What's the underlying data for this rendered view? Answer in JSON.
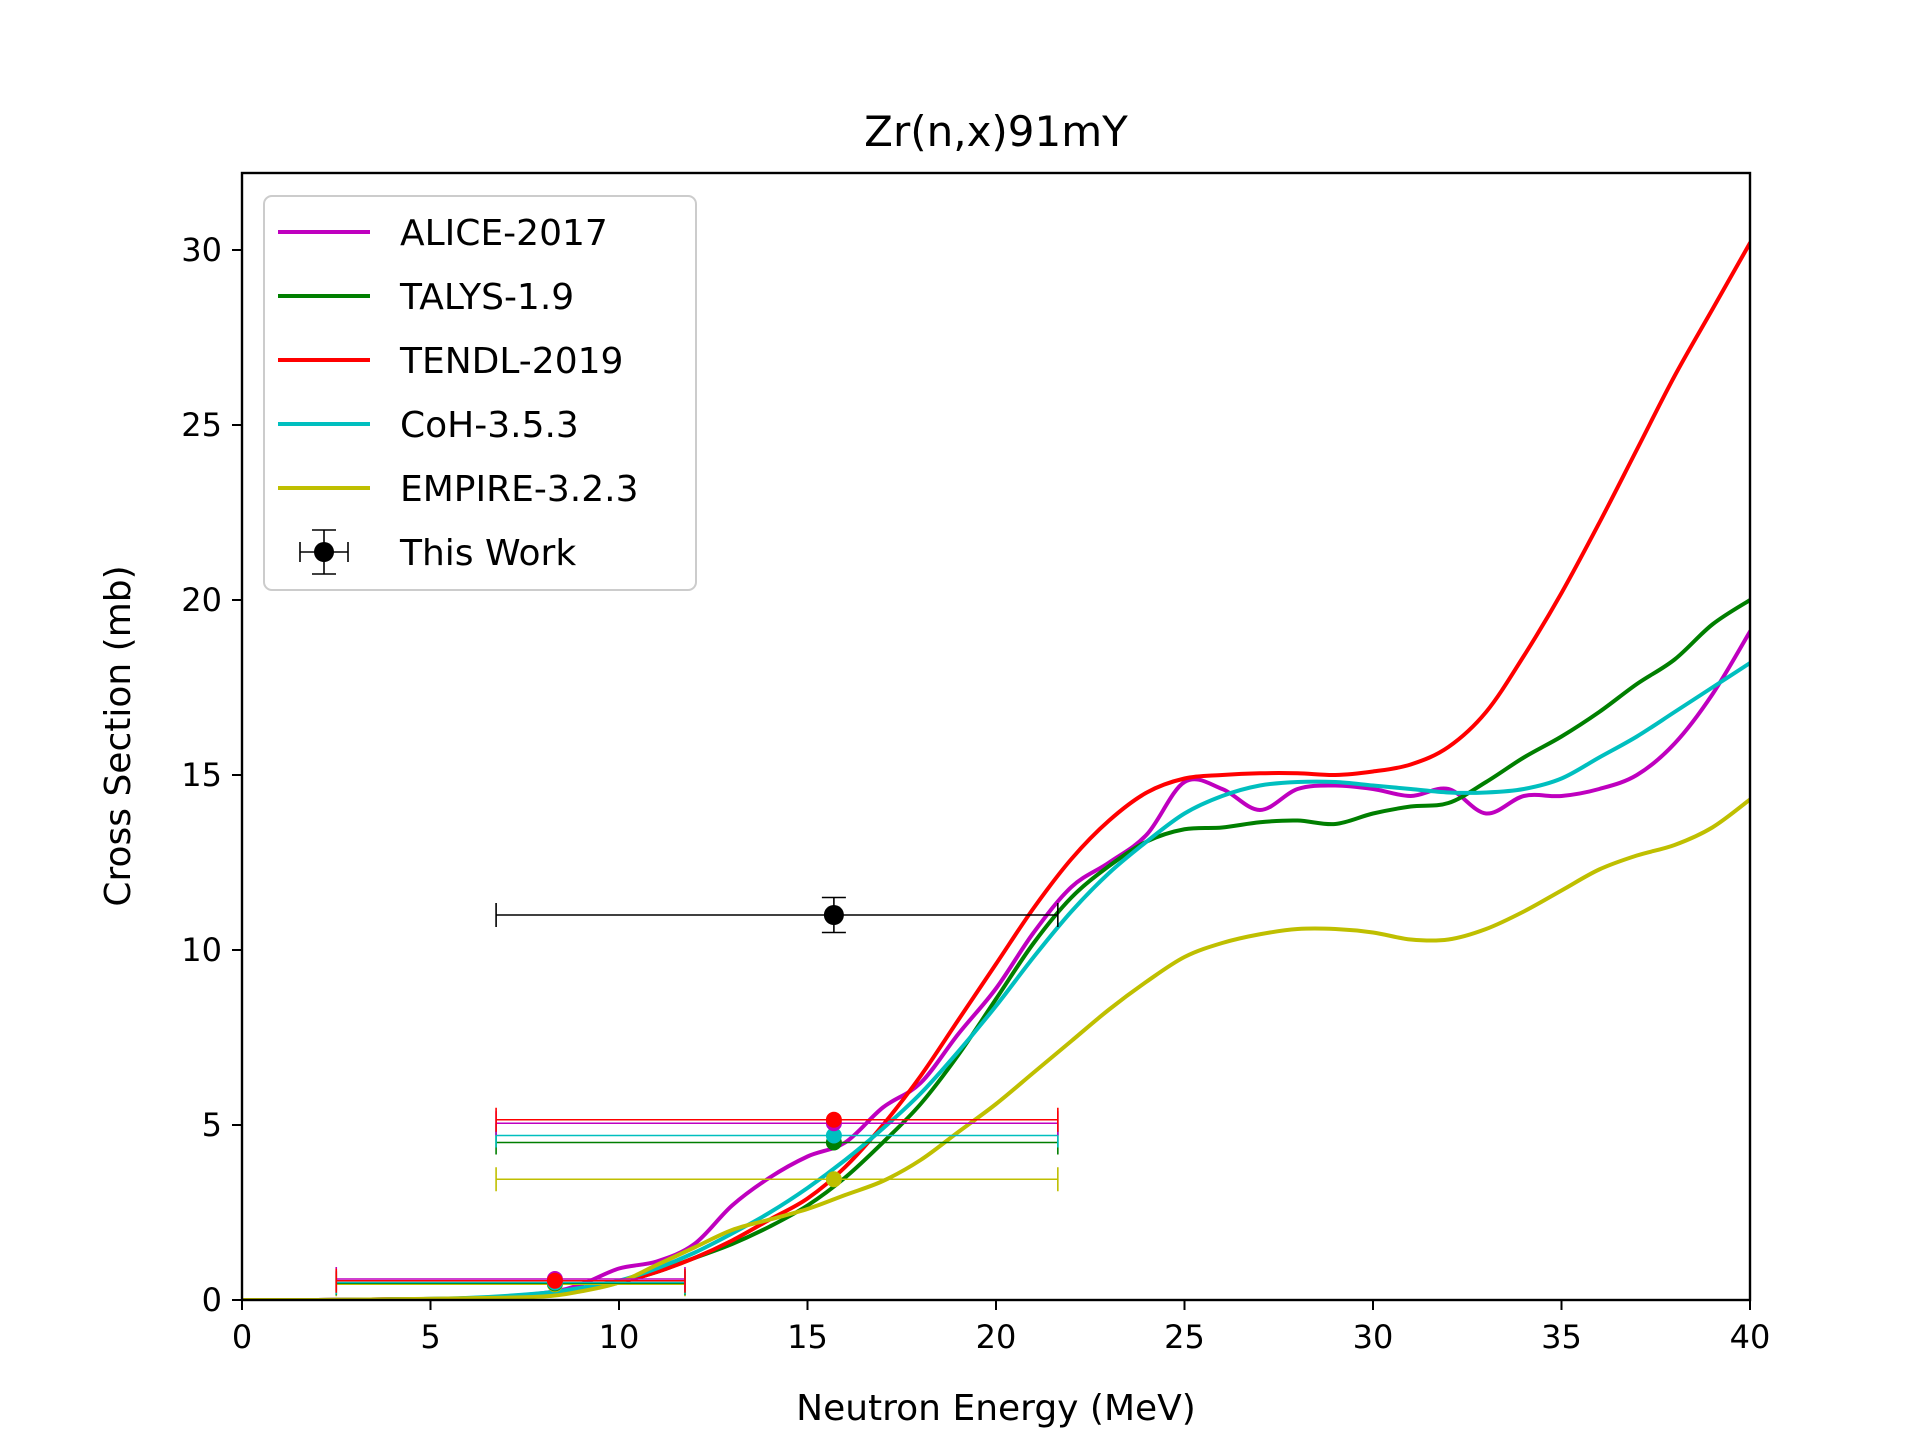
{
  "chart_data": {
    "type": "line",
    "title": "Zr(n,x)91mY",
    "xlabel": "Neutron Energy (MeV)",
    "ylabel": "Cross Section (mb)",
    "xlim": [
      0,
      40
    ],
    "ylim": [
      0,
      32.2
    ],
    "xticks": [
      0,
      5,
      10,
      15,
      20,
      25,
      30,
      35,
      40
    ],
    "yticks": [
      0,
      5,
      10,
      15,
      20,
      25,
      30
    ],
    "grid": false,
    "legend_position": "top-left",
    "series": [
      {
        "name": "ALICE-2017",
        "color": "#bf00bf",
        "x": [
          0,
          2,
          4,
          6,
          8,
          9,
          10,
          11,
          12,
          13,
          14,
          15,
          16,
          17,
          18,
          19,
          20,
          21,
          22,
          23,
          24,
          25,
          26,
          27,
          28,
          29,
          30,
          31,
          32,
          33,
          34,
          35,
          36,
          37,
          38,
          39,
          40
        ],
        "y": [
          0.0,
          0.0,
          0.02,
          0.05,
          0.2,
          0.45,
          0.9,
          1.1,
          1.6,
          2.7,
          3.5,
          4.1,
          4.5,
          5.5,
          6.2,
          7.6,
          8.9,
          10.5,
          11.8,
          12.5,
          13.3,
          14.8,
          14.6,
          14.0,
          14.6,
          14.7,
          14.6,
          14.4,
          14.6,
          13.9,
          14.4,
          14.4,
          14.6,
          15.0,
          15.9,
          17.3,
          19.1
        ]
      },
      {
        "name": "TALYS-1.9",
        "color": "#007f00",
        "x": [
          0,
          2,
          4,
          6,
          8,
          9,
          10,
          11,
          12,
          13,
          14,
          15,
          16,
          17,
          18,
          19,
          20,
          21,
          22,
          23,
          24,
          25,
          26,
          27,
          28,
          29,
          30,
          31,
          32,
          33,
          34,
          35,
          36,
          37,
          38,
          39,
          40
        ],
        "y": [
          0.0,
          0.0,
          0.02,
          0.05,
          0.15,
          0.3,
          0.5,
          0.8,
          1.2,
          1.6,
          2.1,
          2.7,
          3.5,
          4.5,
          5.6,
          7.0,
          8.6,
          10.2,
          11.5,
          12.4,
          13.1,
          13.45,
          13.5,
          13.65,
          13.7,
          13.6,
          13.9,
          14.1,
          14.2,
          14.8,
          15.5,
          16.1,
          16.8,
          17.6,
          18.3,
          19.3,
          20.0
        ]
      },
      {
        "name": "TENDL-2019",
        "color": "#ff0000",
        "x": [
          0,
          2,
          4,
          6,
          8,
          9,
          10,
          11,
          12,
          13,
          14,
          15,
          16,
          17,
          18,
          19,
          20,
          21,
          22,
          23,
          24,
          25,
          26,
          27,
          28,
          29,
          30,
          31,
          32,
          33,
          34,
          35,
          36,
          37,
          38,
          39,
          40
        ],
        "y": [
          0.0,
          0.0,
          0.02,
          0.05,
          0.15,
          0.3,
          0.5,
          0.8,
          1.2,
          1.7,
          2.3,
          2.9,
          3.8,
          5.0,
          6.4,
          8.0,
          9.6,
          11.2,
          12.6,
          13.7,
          14.5,
          14.9,
          15.0,
          15.05,
          15.05,
          15.0,
          15.1,
          15.3,
          15.8,
          16.8,
          18.4,
          20.2,
          22.2,
          24.3,
          26.4,
          28.3,
          30.2
        ]
      },
      {
        "name": "CoH-3.5.3",
        "color": "#00bfbf",
        "x": [
          0,
          2,
          4,
          6,
          8,
          9,
          10,
          11,
          12,
          13,
          14,
          15,
          16,
          17,
          18,
          19,
          20,
          21,
          22,
          23,
          24,
          25,
          26,
          27,
          28,
          29,
          30,
          31,
          32,
          33,
          34,
          35,
          36,
          37,
          38,
          39,
          40
        ],
        "y": [
          0.0,
          0.0,
          0.02,
          0.06,
          0.2,
          0.35,
          0.55,
          0.9,
          1.35,
          1.9,
          2.5,
          3.2,
          4.0,
          4.9,
          5.9,
          7.1,
          8.4,
          9.8,
          11.1,
          12.2,
          13.1,
          13.9,
          14.4,
          14.7,
          14.8,
          14.8,
          14.7,
          14.6,
          14.5,
          14.5,
          14.6,
          14.9,
          15.5,
          16.1,
          16.8,
          17.5,
          18.2
        ]
      },
      {
        "name": "EMPIRE-3.2.3",
        "color": "#bfbf00",
        "x": [
          0,
          2,
          4,
          6,
          8,
          9,
          10,
          11,
          12,
          13,
          14,
          15,
          16,
          17,
          18,
          19,
          20,
          21,
          22,
          23,
          24,
          25,
          26,
          27,
          28,
          29,
          30,
          31,
          32,
          33,
          34,
          35,
          36,
          37,
          38,
          39,
          40
        ],
        "y": [
          0.0,
          0.0,
          0.02,
          0.05,
          0.1,
          0.25,
          0.5,
          1.0,
          1.5,
          2.0,
          2.3,
          2.6,
          3.0,
          3.4,
          4.0,
          4.8,
          5.6,
          6.5,
          7.4,
          8.3,
          9.1,
          9.8,
          10.2,
          10.45,
          10.6,
          10.6,
          10.5,
          10.3,
          10.3,
          10.6,
          11.1,
          11.7,
          12.3,
          12.7,
          13.0,
          13.5,
          14.3
        ]
      }
    ],
    "errorbar_series": [
      {
        "name": "This Work",
        "color": "#000000",
        "points": [
          {
            "x": 15.7,
            "y": 11.0,
            "xerr": [
              8.96,
              5.94
            ],
            "yerr": 0.5
          }
        ]
      },
      {
        "color": "#ff0000",
        "points": [
          {
            "x": 8.3,
            "y": 0.55,
            "xerr": [
              5.8,
              3.45
            ],
            "yerr": 0.0
          },
          {
            "x": 15.7,
            "y": 5.15,
            "xerr": [
              8.96,
              5.94
            ],
            "yerr": 0.0
          }
        ]
      },
      {
        "color": "#bf00bf",
        "points": [
          {
            "x": 8.3,
            "y": 0.6,
            "xerr": [
              5.8,
              3.45
            ],
            "yerr": 0.0
          },
          {
            "x": 15.7,
            "y": 5.05,
            "xerr": [
              8.96,
              5.94
            ],
            "yerr": 0.0
          }
        ]
      },
      {
        "color": "#00bfbf",
        "points": [
          {
            "x": 8.3,
            "y": 0.5,
            "xerr": [
              5.8,
              3.45
            ],
            "yerr": 0.0
          },
          {
            "x": 15.7,
            "y": 4.7,
            "xerr": [
              8.96,
              5.94
            ],
            "yerr": 0.0
          }
        ]
      },
      {
        "color": "#007f00",
        "points": [
          {
            "x": 8.3,
            "y": 0.48,
            "xerr": [
              5.8,
              3.45
            ],
            "yerr": 0.0
          },
          {
            "x": 15.7,
            "y": 4.5,
            "xerr": [
              8.96,
              5.94
            ],
            "yerr": 0.0
          }
        ]
      },
      {
        "color": "#bfbf00",
        "points": [
          {
            "x": 8.3,
            "y": 0.45,
            "xerr": [
              5.8,
              3.45
            ],
            "yerr": 0.0
          },
          {
            "x": 15.7,
            "y": 3.45,
            "xerr": [
              8.96,
              5.94
            ],
            "yerr": 0.0
          }
        ]
      }
    ]
  }
}
